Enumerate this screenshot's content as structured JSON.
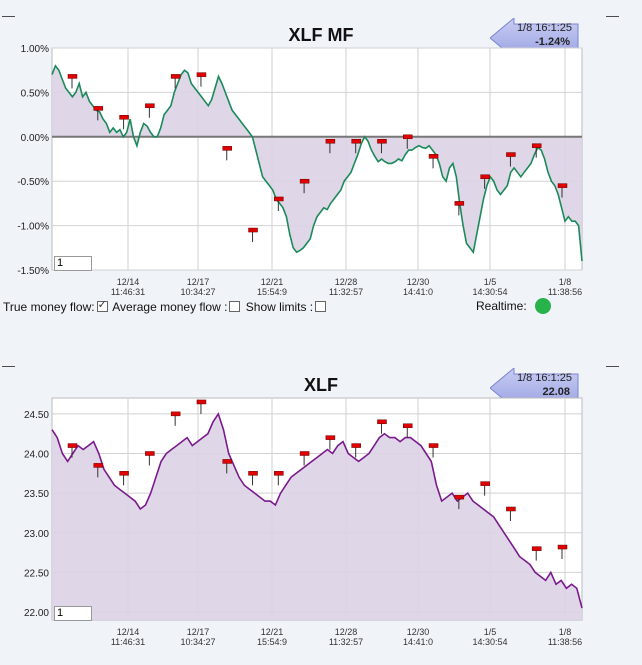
{
  "ui": {
    "controls": {
      "true_money_flow": "True money flow:",
      "average_money_flow": "Average money flow :",
      "show_limits": "Show limits :",
      "realtime": "Realtime:"
    },
    "dash": "—"
  },
  "colors": {
    "mf_line": "#1b8a5a",
    "price_line": "#7a1a8c",
    "fill": "#dcd3e4",
    "marker": "#e00000",
    "zero_line": "#777777",
    "realtime_dot": "#27b24a"
  },
  "chart_data": [
    {
      "type": "area",
      "title": "XLF MF",
      "badge": {
        "time": "1/8 16:1:25",
        "value": "-1.24%"
      },
      "input_value": "1",
      "yticks": [
        "1.00%",
        "0.50%",
        "0.00%",
        "-0.50%",
        "-1.00%",
        "-1.50%"
      ],
      "ylim": [
        -1.5,
        1.0
      ],
      "xticks": [
        {
          "date": "12/14",
          "time": "11:46:31"
        },
        {
          "date": "12/17",
          "time": "10:34:27"
        },
        {
          "date": "12/21",
          "time": "15:54:9"
        },
        {
          "date": "12/28",
          "time": "11:32:57"
        },
        {
          "date": "12/30",
          "time": "14:41:0"
        },
        {
          "date": "1/5",
          "time": "14:30:54"
        },
        {
          "date": "1/8",
          "time": "11:38:56"
        }
      ],
      "series": [
        {
          "values": [
            0.7,
            0.8,
            0.75,
            0.65,
            0.55,
            0.5,
            0.45,
            0.5,
            0.6,
            0.45,
            0.5,
            0.4,
            0.35,
            0.3,
            0.28,
            0.2,
            0.15,
            0.05,
            0.1,
            0.05,
            0.08,
            0.0,
            0.05,
            0.2,
            0.0,
            -0.1,
            0.05,
            0.15,
            0.12,
            0.05,
            0.0,
            0.0,
            0.1,
            0.25,
            0.3,
            0.35,
            0.5,
            0.6,
            0.7,
            0.75,
            0.72,
            0.6,
            0.55,
            0.5,
            0.45,
            0.4,
            0.35,
            0.42,
            0.55,
            0.68,
            0.6,
            0.5,
            0.4,
            0.3,
            0.25,
            0.2,
            0.15,
            0.1,
            0.05,
            0.0,
            -0.15,
            -0.3,
            -0.45,
            -0.5,
            -0.55,
            -0.6,
            -0.7,
            -0.75,
            -0.8,
            -0.9,
            -1.1,
            -1.25,
            -1.3,
            -1.28,
            -1.25,
            -1.2,
            -1.15,
            -1.0,
            -0.9,
            -0.85,
            -0.8,
            -0.82,
            -0.75,
            -0.7,
            -0.65,
            -0.6,
            -0.5,
            -0.45,
            -0.4,
            -0.3,
            -0.2,
            -0.08,
            0.0,
            -0.05,
            -0.15,
            -0.22,
            -0.28,
            -0.25,
            -0.28,
            -0.3,
            -0.3,
            -0.28,
            -0.25,
            -0.27,
            -0.2,
            -0.15,
            -0.15,
            -0.12,
            -0.1,
            -0.12,
            -0.13,
            -0.1,
            -0.15,
            -0.2,
            -0.3,
            -0.45,
            -0.5,
            -0.35,
            -0.3,
            -0.45,
            -0.75,
            -1.0,
            -1.2,
            -1.25,
            -1.3,
            -1.1,
            -0.9,
            -0.7,
            -0.55,
            -0.45,
            -0.5,
            -0.6,
            -0.65,
            -0.6,
            -0.55,
            -0.4,
            -0.35,
            -0.4,
            -0.45,
            -0.4,
            -0.35,
            -0.3,
            -0.2,
            -0.12,
            -0.15,
            -0.25,
            -0.4,
            -0.5,
            -0.55,
            -0.65,
            -0.8,
            -0.95,
            -0.9,
            -0.95,
            -0.95,
            -1.0,
            -1.4
          ]
        }
      ],
      "markers": [
        0.68,
        0.32,
        0.22,
        0.35,
        0.68,
        0.7,
        -0.13,
        -1.05,
        -0.7,
        -0.5,
        -0.05,
        -0.05,
        -0.05,
        0.0,
        -0.22,
        -0.75,
        -0.45,
        -0.2,
        -0.1,
        -0.55
      ]
    },
    {
      "type": "area",
      "title": "XLF",
      "badge": {
        "time": "1/8 16:1:25",
        "value": "22.08"
      },
      "input_value": "1",
      "yticks": [
        "24.50",
        "24.00",
        "23.50",
        "23.00",
        "22.50",
        "22.00"
      ],
      "ylim": [
        21.9,
        24.7
      ],
      "xticks": [
        {
          "date": "12/14",
          "time": "11:46:31"
        },
        {
          "date": "12/17",
          "time": "10:34:27"
        },
        {
          "date": "12/21",
          "time": "15:54:9"
        },
        {
          "date": "12/28",
          "time": "11:32:57"
        },
        {
          "date": "12/30",
          "time": "14:41:0"
        },
        {
          "date": "1/5",
          "time": "14:30:54"
        },
        {
          "date": "1/8",
          "time": "11:38:56"
        }
      ],
      "series": [
        {
          "values": [
            24.3,
            24.2,
            24.0,
            23.9,
            24.0,
            24.1,
            24.05,
            24.1,
            24.15,
            24.0,
            23.8,
            23.7,
            23.6,
            23.55,
            23.5,
            23.45,
            23.4,
            23.3,
            23.35,
            23.5,
            23.7,
            23.9,
            24.0,
            24.05,
            24.1,
            24.15,
            24.2,
            24.1,
            24.15,
            24.2,
            24.25,
            24.4,
            24.5,
            24.3,
            24.0,
            23.85,
            23.7,
            23.6,
            23.55,
            23.5,
            23.45,
            23.4,
            23.4,
            23.35,
            23.5,
            23.6,
            23.7,
            23.75,
            23.8,
            23.85,
            23.9,
            23.95,
            24.0,
            24.05,
            24.0,
            24.1,
            24.15,
            24.0,
            23.95,
            23.9,
            23.95,
            24.0,
            24.1,
            24.2,
            24.25,
            24.2,
            24.2,
            24.15,
            24.2,
            24.2,
            24.15,
            24.1,
            24.0,
            23.9,
            23.6,
            23.4,
            23.45,
            23.5,
            23.4,
            23.45,
            23.5,
            23.4,
            23.35,
            23.3,
            23.25,
            23.2,
            23.1,
            23.0,
            22.9,
            22.8,
            22.7,
            22.65,
            22.6,
            22.5,
            22.45,
            22.4,
            22.5,
            22.35,
            22.4,
            22.3,
            22.35,
            22.3,
            22.05
          ]
        }
      ],
      "markers": [
        24.1,
        23.85,
        23.75,
        24.0,
        24.5,
        24.65,
        23.9,
        23.75,
        23.75,
        24.0,
        24.2,
        24.1,
        24.4,
        24.35,
        24.1,
        23.45,
        23.62,
        23.3,
        22.8,
        22.82
      ]
    }
  ]
}
